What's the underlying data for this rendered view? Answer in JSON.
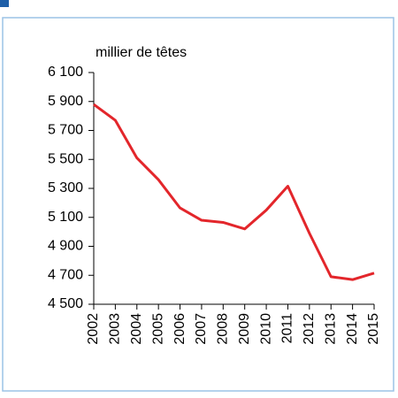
{
  "chart_data": {
    "type": "line",
    "y_label": "millier de têtes",
    "categories": [
      "2002",
      "2003",
      "2004",
      "2005",
      "2006",
      "2007",
      "2008",
      "2009",
      "2010",
      "2011",
      "2012",
      "2013",
      "2014",
      "2015"
    ],
    "values": [
      5880,
      5770,
      5510,
      5360,
      5165,
      5080,
      5065,
      5020,
      5150,
      5315,
      4990,
      4690,
      4670,
      4715
    ],
    "color": "#e3262b",
    "ylim": [
      4500,
      6100
    ],
    "yticks": [
      {
        "value": 4500,
        "label": "4 500"
      },
      {
        "value": 4700,
        "label": "4 700"
      },
      {
        "value": 4900,
        "label": "4 900"
      },
      {
        "value": 5100,
        "label": "5 100"
      },
      {
        "value": 5300,
        "label": "5 300"
      },
      {
        "value": 5500,
        "label": "5 500"
      },
      {
        "value": 5700,
        "label": "5 700"
      },
      {
        "value": 5900,
        "label": "5 900"
      },
      {
        "value": 6100,
        "label": "6 100"
      }
    ],
    "grid": false
  }
}
